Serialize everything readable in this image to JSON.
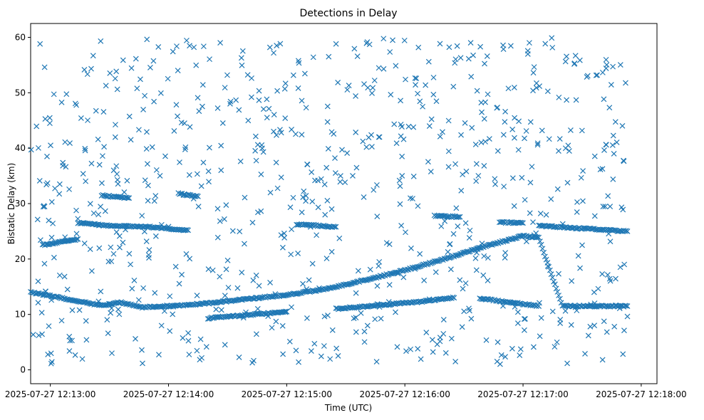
{
  "chart_data": {
    "type": "scatter",
    "title": "Detections in Delay",
    "xlabel": "Time (UTC)",
    "ylabel": "Bistatic Delay (km)",
    "marker": "x",
    "marker_color": "#1f77b4",
    "grid": false,
    "xlim_seconds_after_12_12_50": [
      0,
      318
    ],
    "ylim": [
      -2.5,
      62.5
    ],
    "x_ticks": [
      {
        "label": "2025-07-27 12:13:00",
        "value": 10
      },
      {
        "label": "2025-07-27 12:14:00",
        "value": 70
      },
      {
        "label": "2025-07-27 12:15:00",
        "value": 130
      },
      {
        "label": "2025-07-27 12:16:00",
        "value": 190
      },
      {
        "label": "2025-07-27 12:17:00",
        "value": 250
      },
      {
        "label": "2025-07-27 12:18:00",
        "value": 310
      }
    ],
    "y_ticks": [
      {
        "label": "0",
        "value": 0
      },
      {
        "label": "10",
        "value": 10
      },
      {
        "label": "20",
        "value": 20
      },
      {
        "label": "30",
        "value": 30
      },
      {
        "label": "40",
        "value": 40
      },
      {
        "label": "50",
        "value": 50
      },
      {
        "label": "60",
        "value": 60
      }
    ],
    "time_range": {
      "start": "2025-07-27 12:12:51",
      "end": "2025-07-27 12:17:54"
    },
    "tracks": [
      {
        "name": "track-1",
        "t": [
          0,
          18,
          36,
          46,
          56,
          70,
          90,
          110,
          130,
          150,
          170,
          190,
          210,
          230,
          250,
          258,
          270,
          290,
          303
        ],
        "delay": [
          14.0,
          12.8,
          11.6,
          12.2,
          11.3,
          11.5,
          12.0,
          12.8,
          13.5,
          14.6,
          16.2,
          18.0,
          20.0,
          22.2,
          24.2,
          23.8,
          11.5,
          11.5,
          11.5
        ]
      },
      {
        "name": "track-2",
        "t": [
          6,
          14,
          24
        ],
        "delay": [
          22.5,
          23.0,
          23.6
        ]
      },
      {
        "name": "track-3",
        "t": [
          24,
          40,
          60,
          80
        ],
        "delay": [
          26.5,
          26.0,
          25.8,
          25.2
        ]
      },
      {
        "name": "track-4",
        "t": [
          36,
          50
        ],
        "delay": [
          31.5,
          31.0
        ]
      },
      {
        "name": "track-5",
        "t": [
          75,
          85
        ],
        "delay": [
          31.8,
          31.3
        ]
      },
      {
        "name": "track-6",
        "t": [
          90,
          130
        ],
        "delay": [
          9.3,
          10.5
        ]
      },
      {
        "name": "track-7",
        "t": [
          135,
          155
        ],
        "delay": [
          26.3,
          25.8
        ]
      },
      {
        "name": "track-8",
        "t": [
          155,
          175,
          195,
          215
        ],
        "delay": [
          11.0,
          11.6,
          12.2,
          13.0
        ]
      },
      {
        "name": "track-9",
        "t": [
          205,
          218
        ],
        "delay": [
          27.8,
          27.6
        ]
      },
      {
        "name": "track-10",
        "t": [
          228,
          258
        ],
        "delay": [
          12.9,
          11.5
        ]
      },
      {
        "name": "track-11",
        "t": [
          238,
          250
        ],
        "delay": [
          26.6,
          26.5
        ]
      },
      {
        "name": "track-12",
        "t": [
          258,
          303
        ],
        "delay": [
          26.0,
          25.0
        ]
      }
    ],
    "clutter": {
      "count": 780,
      "t_range": [
        0,
        303
      ],
      "delay_range": [
        1,
        60
      ],
      "distribution": "approximately uniform random scatter"
    }
  }
}
